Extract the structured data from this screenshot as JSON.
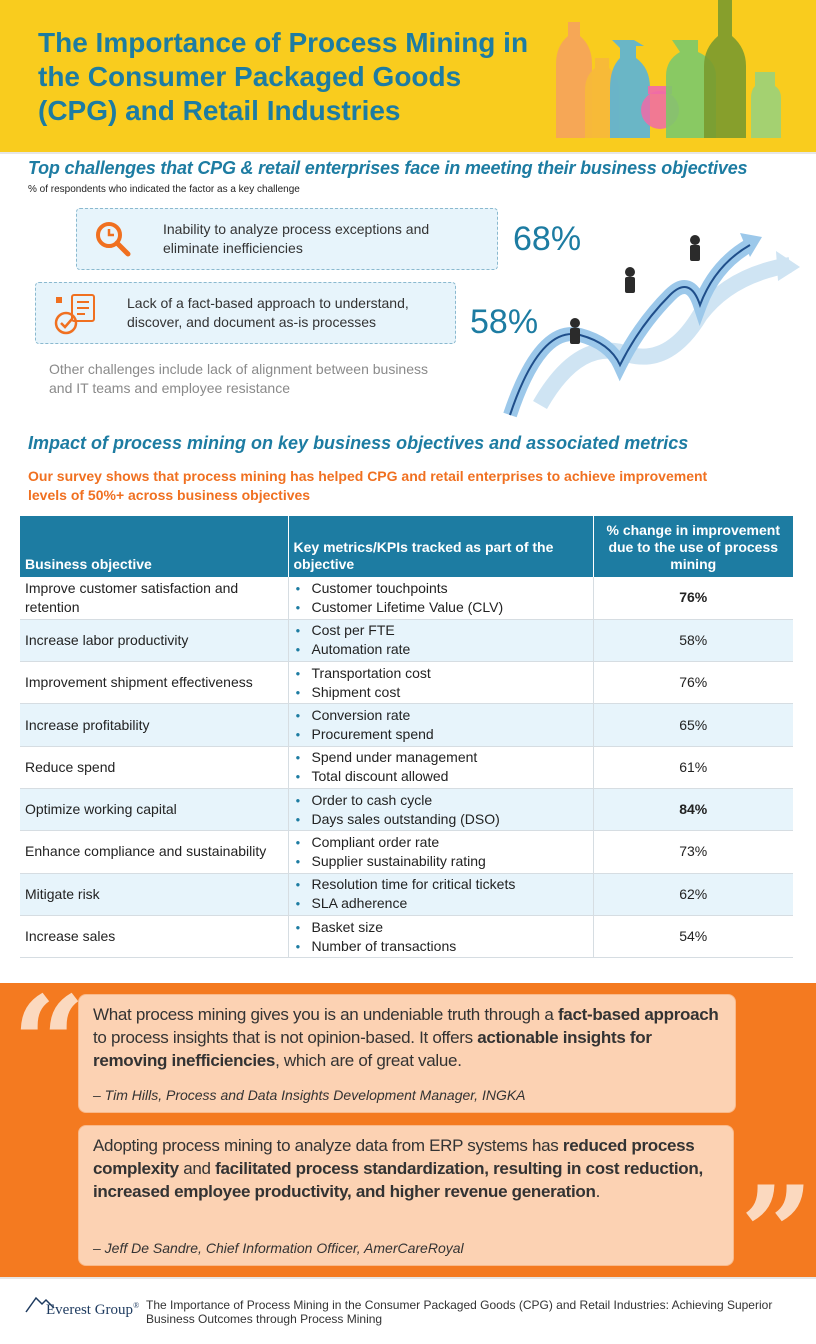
{
  "header": {
    "title": "The Importance of Process Mining in the Consumer Packaged Goods (CPG) and Retail Industries"
  },
  "challenges": {
    "title": "Top challenges that CPG & retail enterprises face in meeting their business objectives",
    "subtitle": "% of respondents who indicated the factor as a key challenge",
    "items": [
      {
        "text": "Inability to analyze process exceptions and eliminate inefficiencies",
        "pct": "68%",
        "icon": "magnifier-clock-icon"
      },
      {
        "text": "Lack of a fact-based approach to understand, discover, and document as-is processes",
        "pct": "58%",
        "icon": "document-checklist-icon"
      }
    ],
    "other": "Other challenges include lack of alignment between business and IT teams and employee resistance"
  },
  "impact": {
    "title": "Impact of process mining on key business objectives and associated metrics",
    "subtitle": "Our survey shows that process mining has helped CPG and retail enterprises to achieve improvement levels of 50%+ across business objectives",
    "headers": [
      "Business objective",
      "Key metrics/KPIs tracked as part of the objective",
      "% change in improvement due to the use of process mining"
    ],
    "rows": [
      {
        "objective": "Improve customer satisfaction and retention",
        "metrics": [
          "Customer touchpoints",
          "Customer Lifetime Value (CLV)"
        ],
        "pct": "76%",
        "bold": true
      },
      {
        "objective": "Increase labor productivity",
        "metrics": [
          "Cost per FTE",
          "Automation rate"
        ],
        "pct": "58%",
        "bold": false
      },
      {
        "objective": "Improvement shipment effectiveness",
        "metrics": [
          "Transportation cost",
          "Shipment cost"
        ],
        "pct": "76%",
        "bold": false
      },
      {
        "objective": "Increase profitability",
        "metrics": [
          "Conversion rate",
          "Procurement spend"
        ],
        "pct": "65%",
        "bold": false
      },
      {
        "objective": "Reduce spend",
        "metrics": [
          "Spend under management",
          "Total discount allowed"
        ],
        "pct": "61%",
        "bold": false
      },
      {
        "objective": "Optimize working capital",
        "metrics": [
          "Order to cash cycle",
          "Days sales outstanding (DSO)"
        ],
        "pct": "84%",
        "bold": true
      },
      {
        "objective": "Enhance compliance and sustainability",
        "metrics": [
          "Compliant order rate",
          "Supplier sustainability rating"
        ],
        "pct": "73%",
        "bold": false
      },
      {
        "objective": "Mitigate risk",
        "metrics": [
          "Resolution time for critical tickets",
          "SLA adherence"
        ],
        "pct": "62%",
        "bold": false
      },
      {
        "objective": "Increase sales",
        "metrics": [
          "Basket size",
          "Number of transactions"
        ],
        "pct": "54%",
        "bold": false
      }
    ]
  },
  "quotes": [
    {
      "parts": [
        {
          "t": "What process mining gives you is an undeniable truth through a ",
          "b": false
        },
        {
          "t": "fact-based approach",
          "b": true
        },
        {
          "t": " to process insights that is not opinion-based. It offers ",
          "b": false
        },
        {
          "t": "actionable insights for removing inefficiencies",
          "b": true
        },
        {
          "t": ", which are of great value.",
          "b": false
        }
      ],
      "attribution": "– Tim Hills, Process and Data Insights Development Manager, INGKA"
    },
    {
      "parts": [
        {
          "t": "Adopting process mining to analyze data from ERP systems has ",
          "b": false
        },
        {
          "t": "reduced process complexity",
          "b": true
        },
        {
          "t": " and ",
          "b": false
        },
        {
          "t": "facilitated process standardization, resulting in cost reduction, increased employee productivity, and higher revenue generation",
          "b": true
        },
        {
          "t": ".",
          "b": false
        }
      ],
      "attribution": "– Jeff De Sandre, Chief Information Officer, AmerCareRoyal"
    }
  ],
  "footer": {
    "logo": "Everest Group",
    "logo_mark": "®",
    "text": "The Importance of Process Mining in the Consumer Packaged Goods (CPG) and Retail Industries: Achieving Superior Business Outcomes through Process Mining"
  },
  "colors": {
    "brand_blue": "#1d7ca2",
    "header_yellow": "#f9cc1e",
    "accent_orange": "#f47a20",
    "light_blue": "#e7f4fb"
  }
}
